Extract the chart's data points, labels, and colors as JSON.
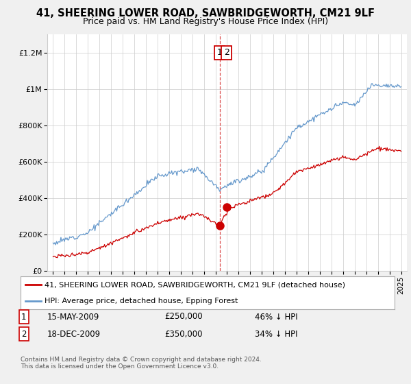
{
  "title": "41, SHEERING LOWER ROAD, SAWBRIDGEWORTH, CM21 9LF",
  "subtitle": "Price paid vs. HM Land Registry's House Price Index (HPI)",
  "legend_line1": "41, SHEERING LOWER ROAD, SAWBRIDGEWORTH, CM21 9LF (detached house)",
  "legend_line2": "HPI: Average price, detached house, Epping Forest",
  "footnote": "Contains HM Land Registry data © Crown copyright and database right 2024.\nThis data is licensed under the Open Government Licence v3.0.",
  "transaction1_date": "15-MAY-2009",
  "transaction1_price": "£250,000",
  "transaction1_hpi": "46% ↓ HPI",
  "transaction1_x": 2009.37,
  "transaction1_y": 250000,
  "transaction2_date": "18-DEC-2009",
  "transaction2_price": "£350,000",
  "transaction2_hpi": "34% ↓ HPI",
  "transaction2_x": 2009.96,
  "transaction2_y": 350000,
  "red_color": "#cc0000",
  "blue_color": "#6699cc",
  "vline_color": "#cc0000",
  "background": "#f0f0f0",
  "plot_bg": "#ffffff",
  "ylim_min": 0,
  "ylim_max": 1300000,
  "xlim_min": 1994.5,
  "xlim_max": 2025.5,
  "yticks": [
    0,
    200000,
    400000,
    600000,
    800000,
    1000000,
    1200000
  ],
  "ytick_labels": [
    "£0",
    "£200K",
    "£400K",
    "£600K",
    "£800K",
    "£1M",
    "£1.2M"
  ],
  "xticks": [
    1995,
    1996,
    1997,
    1998,
    1999,
    2000,
    2001,
    2002,
    2003,
    2004,
    2005,
    2006,
    2007,
    2008,
    2009,
    2010,
    2011,
    2012,
    2013,
    2014,
    2015,
    2016,
    2017,
    2018,
    2019,
    2020,
    2021,
    2022,
    2023,
    2024,
    2025
  ]
}
